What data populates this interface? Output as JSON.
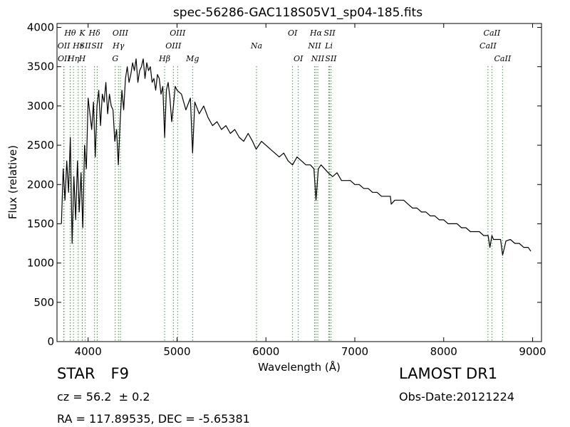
{
  "chart_data": {
    "type": "line",
    "title": "spec-56286-GAC118S05V1_sp04-185.fits",
    "xlabel": "Wavelength (Å)",
    "ylabel": "Flux (relative)",
    "xlim": [
      3650,
      9100
    ],
    "ylim": [
      0,
      4050
    ],
    "xticks": [
      4000,
      5000,
      6000,
      7000,
      8000,
      9000
    ],
    "yticks": [
      0,
      500,
      1000,
      1500,
      2000,
      2500,
      3000,
      3500,
      4000
    ],
    "grid": false,
    "legend": "none",
    "line_color": "#000000",
    "marker_color": "#2ca02c",
    "series": [
      {
        "x": [
          3700,
          3720,
          3740,
          3760,
          3780,
          3800,
          3820,
          3840,
          3860,
          3880,
          3900,
          3920,
          3940,
          3960,
          3980,
          4000,
          4020,
          4040,
          4060,
          4080,
          4100,
          4120,
          4140,
          4160,
          4180,
          4200,
          4220,
          4240,
          4260,
          4280,
          4300,
          4320,
          4340,
          4360,
          4380,
          4400,
          4420,
          4440,
          4460,
          4480,
          4500,
          4520,
          4540,
          4560,
          4580,
          4600,
          4620,
          4640,
          4660,
          4680,
          4700,
          4720,
          4740,
          4760,
          4780,
          4800,
          4820,
          4840,
          4861,
          4880,
          4900,
          4920,
          4940,
          4960,
          4980,
          5000,
          5050,
          5100,
          5150,
          5175,
          5200,
          5250,
          5300,
          5350,
          5400,
          5450,
          5500,
          5550,
          5600,
          5650,
          5700,
          5750,
          5800,
          5850,
          5890,
          5950,
          6000,
          6050,
          6100,
          6150,
          6200,
          6250,
          6300,
          6350,
          6400,
          6450,
          6500,
          6540,
          6563,
          6590,
          6620,
          6660,
          6700,
          6750,
          6800,
          6850,
          6900,
          6950,
          7000,
          7050,
          7100,
          7150,
          7200,
          7250,
          7300,
          7350,
          7400,
          7410,
          7450,
          7500,
          7550,
          7600,
          7650,
          7700,
          7750,
          7800,
          7850,
          7900,
          7950,
          8000,
          8050,
          8100,
          8150,
          8200,
          8250,
          8300,
          8350,
          8400,
          8450,
          8500,
          8520,
          8542,
          8560,
          8600,
          8640,
          8662,
          8700,
          8750,
          8800,
          8850,
          8900,
          8950,
          8980
        ],
        "y": [
          1500,
          2200,
          1800,
          2300,
          1900,
          2600,
          1250,
          2100,
          1550,
          2300,
          1650,
          2150,
          1450,
          2500,
          2200,
          3100,
          2900,
          2700,
          3050,
          2350,
          3000,
          3200,
          2750,
          3150,
          3050,
          3300,
          2900,
          3150,
          3000,
          2950,
          2550,
          2700,
          2250,
          2800,
          3200,
          2950,
          3350,
          3500,
          3300,
          3400,
          3550,
          3450,
          3600,
          3300,
          3450,
          3500,
          3600,
          3350,
          3550,
          3450,
          3500,
          3300,
          3350,
          3200,
          3400,
          3350,
          3150,
          3250,
          2600,
          3200,
          3300,
          3100,
          2800,
          3000,
          3250,
          3200,
          3150,
          2950,
          3100,
          2400,
          3050,
          2900,
          3000,
          2850,
          2750,
          2800,
          2700,
          2750,
          2650,
          2700,
          2600,
          2550,
          2650,
          2550,
          2450,
          2550,
          2500,
          2450,
          2400,
          2350,
          2400,
          2300,
          2250,
          2350,
          2300,
          2250,
          2250,
          2200,
          1800,
          2200,
          2250,
          2200,
          2150,
          2100,
          2150,
          2050,
          2050,
          2050,
          2000,
          2000,
          1950,
          1950,
          1900,
          1900,
          1850,
          1850,
          1850,
          1750,
          1800,
          1800,
          1800,
          1750,
          1700,
          1700,
          1650,
          1650,
          1600,
          1600,
          1550,
          1550,
          1500,
          1500,
          1500,
          1450,
          1450,
          1400,
          1400,
          1400,
          1350,
          1350,
          1200,
          1350,
          1300,
          1300,
          1300,
          1100,
          1280,
          1300,
          1250,
          1250,
          1200,
          1200,
          1150
        ]
      }
    ],
    "lines": [
      {
        "label": "OII",
        "x": 3727,
        "row": 2
      },
      {
        "label": "OII",
        "x": 3729,
        "row": 3
      },
      {
        "label": "Hθ",
        "x": 3798,
        "row": 1
      },
      {
        "label": "Hη",
        "x": 3835,
        "row": 3
      },
      {
        "label": "Hε",
        "x": 3889,
        "row": 2
      },
      {
        "label": "H",
        "x": 3934,
        "row": 3
      },
      {
        "label": "K",
        "x": 3934,
        "row": 1
      },
      {
        "label": "SII",
        "x": 3968,
        "row": 2
      },
      {
        "label": "Hδ",
        "x": 4072,
        "row": 1
      },
      {
        "label": "SII",
        "x": 4102,
        "row": 2
      },
      {
        "label": "G",
        "x": 4305,
        "row": 3
      },
      {
        "label": "Hγ",
        "x": 4341,
        "row": 2
      },
      {
        "label": "OIII",
        "x": 4363,
        "row": 1
      },
      {
        "label": "Hβ",
        "x": 4861,
        "row": 3
      },
      {
        "label": "OIII",
        "x": 4959,
        "row": 2
      },
      {
        "label": "OIII",
        "x": 5007,
        "row": 1
      },
      {
        "label": "Mg",
        "x": 5175,
        "row": 3
      },
      {
        "label": "Na",
        "x": 5894,
        "row": 2
      },
      {
        "label": "OI",
        "x": 6300,
        "row": 1
      },
      {
        "label": "OI",
        "x": 6364,
        "row": 3
      },
      {
        "label": "NII",
        "x": 6548,
        "row": 2
      },
      {
        "label": "Hα",
        "x": 6563,
        "row": 1
      },
      {
        "label": "NII",
        "x": 6583,
        "row": 3
      },
      {
        "label": "Li",
        "x": 6708,
        "row": 2
      },
      {
        "label": "SII",
        "x": 6716,
        "row": 1
      },
      {
        "label": "SII",
        "x": 6731,
        "row": 3
      },
      {
        "label": "CaII",
        "x": 8498,
        "row": 2
      },
      {
        "label": "CaII",
        "x": 8542,
        "row": 1
      },
      {
        "label": "CaII",
        "x": 8662,
        "row": 3
      }
    ]
  },
  "info": {
    "star_label": "STAR",
    "subclass": "F9",
    "redshift": "cz = 56.2  ± 0.2",
    "coords": "RA = 117.89535, DEC = -5.65381",
    "survey": "LAMOST DR1",
    "obs_date": "Obs-Date:20121224"
  }
}
